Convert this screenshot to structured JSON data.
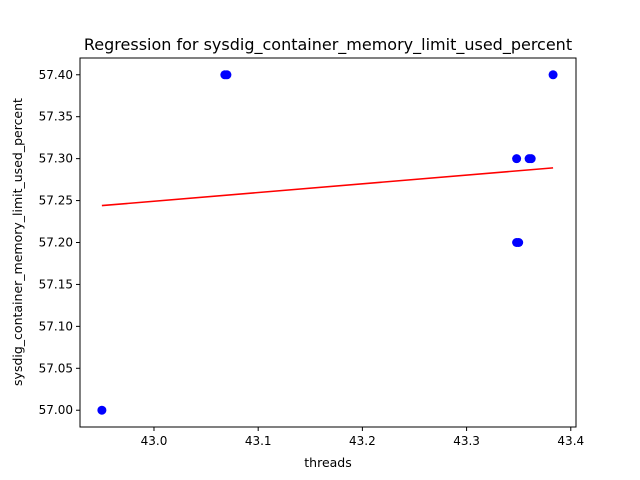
{
  "chart_data": {
    "type": "scatter",
    "title": "Regression for sysdig_container_memory_limit_used_percent",
    "xlabel": "threads",
    "ylabel": "sysdig_container_memory_limit_used_percent",
    "xlim": [
      42.929,
      43.405
    ],
    "ylim": [
      56.98,
      57.42
    ],
    "x_ticks": [
      "43.0",
      "43.1",
      "43.2",
      "43.3",
      "43.4"
    ],
    "y_ticks": [
      "57.00",
      "57.05",
      "57.10",
      "57.15",
      "57.20",
      "57.25",
      "57.30",
      "57.35",
      "57.40"
    ],
    "grid": false,
    "series": [
      {
        "kind": "scatter",
        "color": "#0000ff",
        "points": [
          {
            "x": 42.95,
            "y": 57.0
          },
          {
            "x": 43.07,
            "y": 57.4
          },
          {
            "x": 43.068,
            "y": 57.4
          },
          {
            "x": 43.348,
            "y": 57.3
          },
          {
            "x": 43.348,
            "y": 57.2
          },
          {
            "x": 43.35,
            "y": 57.2
          },
          {
            "x": 43.36,
            "y": 57.3
          },
          {
            "x": 43.362,
            "y": 57.3
          },
          {
            "x": 43.383,
            "y": 57.4
          }
        ]
      },
      {
        "kind": "line",
        "color": "#ff0000",
        "points": [
          {
            "x": 42.95,
            "y": 57.244
          },
          {
            "x": 43.383,
            "y": 57.289
          }
        ]
      }
    ]
  }
}
